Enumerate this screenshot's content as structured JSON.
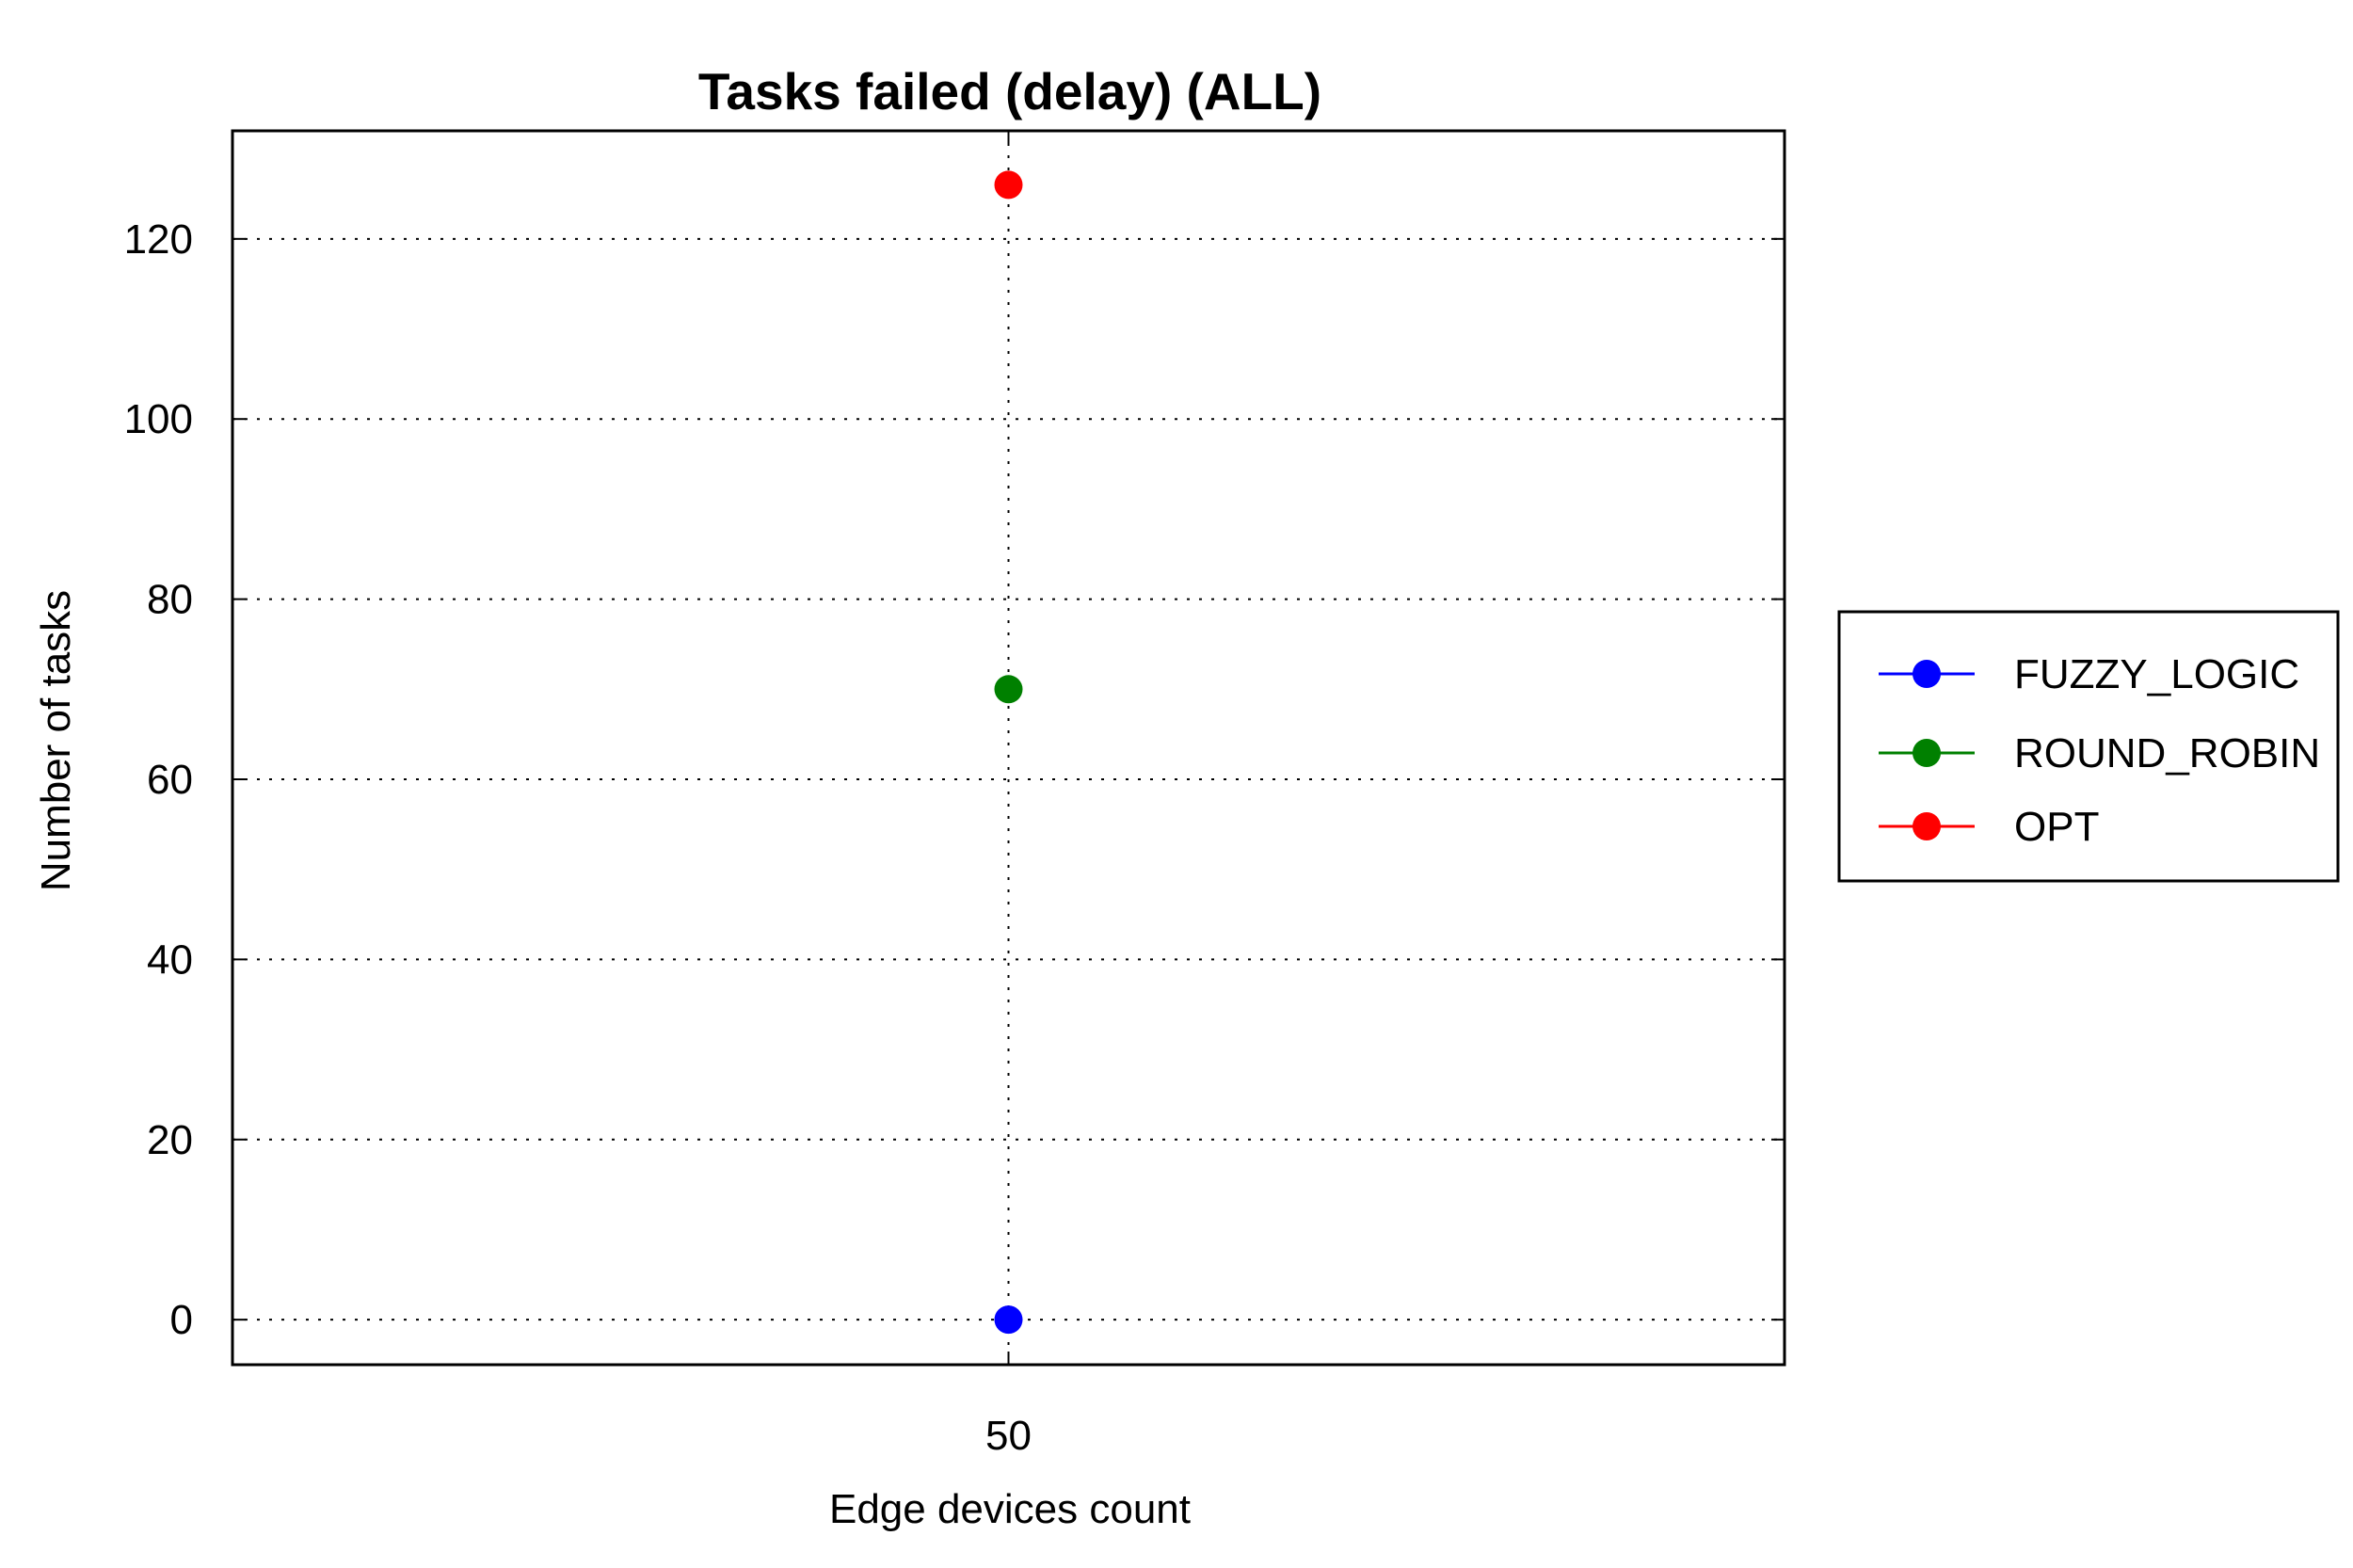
{
  "chart_data": {
    "type": "line",
    "title": "Tasks failed (delay) (ALL)",
    "xlabel": "Edge devices count",
    "ylabel": "Number of tasks",
    "x": [
      50
    ],
    "x_tick_labels": [
      "50"
    ],
    "ylim": [
      -5,
      132
    ],
    "y_ticks": [
      0,
      20,
      40,
      60,
      80,
      100,
      120
    ],
    "grid": true,
    "legend_position": "right",
    "series": [
      {
        "name": "FUZZY_LOGIC",
        "color": "#0000ff",
        "values": [
          0
        ]
      },
      {
        "name": " ROUND_ROBIN",
        "color": "#008000",
        "values": [
          70
        ]
      },
      {
        "name": "OPT",
        "color": "#ff0000",
        "values": [
          126
        ]
      }
    ]
  }
}
